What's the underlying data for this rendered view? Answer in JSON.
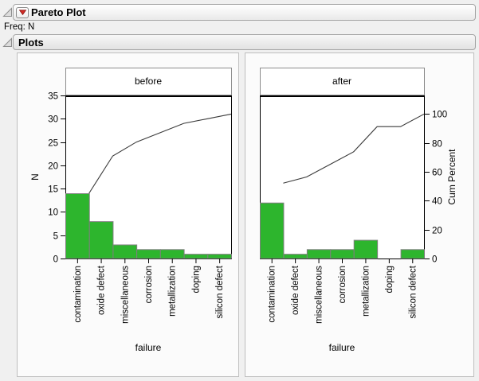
{
  "report": {
    "title": "Pareto Plot",
    "freq": "Freq: N",
    "section_title": "Plots"
  },
  "icons": {
    "disclosure_open": "◿",
    "red_triangle_menu": "▼"
  },
  "colors": {
    "bar_fill": "#2DB52D",
    "bar_stroke": "#7F7F7F",
    "cum_line": "#3A3A3A",
    "frame": "#000000",
    "header_box_border": "#8C8C8C",
    "menu_triangle_red": "#D22B25"
  },
  "chart_data": [
    {
      "type": "bar",
      "subtype": "pareto",
      "group_label": "before",
      "categories": [
        "contamination",
        "oxide defect",
        "miscellaneous",
        "corrosion",
        "metallization",
        "doping",
        "silicon defect"
      ],
      "values": [
        14,
        8,
        3,
        2,
        2,
        1,
        1
      ],
      "cum_percent": [
        45.16,
        70.97,
        80.65,
        87.1,
        93.55,
        96.77,
        100
      ],
      "total_n": 31,
      "xlabel": "failure",
      "ylabel": "N",
      "ylim": [
        0,
        35
      ],
      "y_ticks": [
        0,
        5,
        10,
        15,
        20,
        25,
        30,
        35
      ],
      "y2_100_at_N": 31,
      "show_left_axis": true,
      "show_right_axis": false,
      "grid": false
    },
    {
      "type": "bar",
      "subtype": "pareto",
      "group_label": "after",
      "categories": [
        "contamination",
        "oxide defect",
        "miscellaneous",
        "corrosion",
        "metallization",
        "doping",
        "silicon defect"
      ],
      "values": [
        12,
        1,
        2,
        2,
        4,
        0,
        2
      ],
      "cum_percent": [
        52.17,
        56.52,
        65.22,
        73.91,
        91.3,
        91.3,
        100
      ],
      "total_n": 23,
      "xlabel": "failure",
      "y2label": "Cum Percent",
      "ylim": [
        0,
        35
      ],
      "y2_ticks": [
        0,
        20,
        40,
        60,
        80,
        100
      ],
      "y2_100_at_N": 31,
      "show_left_axis": false,
      "show_right_axis": true,
      "grid": false
    }
  ]
}
